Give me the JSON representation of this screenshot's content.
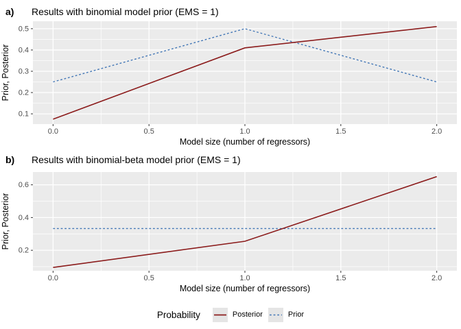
{
  "figure": {
    "background": "#FFFFFF",
    "panel_bg": "#EBEBEB",
    "grid_color": "#FFFFFF",
    "tick_mark_color": "#333333",
    "tick_label_color": "#4D4D4D",
    "axis_title_color": "#000000",
    "posterior_color": "#8B1B1B",
    "prior_color": "#4377B6",
    "legend_key_bg": "#E5E5E5"
  },
  "chart_data": [
    {
      "type": "line",
      "tag": "a)",
      "title": "Results with binomial model prior (EMS = 1)",
      "xlabel": "Model size (number of regressors)",
      "ylabel": "Prior, Posterior",
      "x": [
        0,
        1,
        2
      ],
      "series": [
        {
          "name": "Posterior",
          "values": [
            0.075,
            0.41,
            0.51
          ],
          "color": "#8B1B1B",
          "linetype": "solid"
        },
        {
          "name": "Prior",
          "values": [
            0.25,
            0.5,
            0.25
          ],
          "color": "#4377B6",
          "linetype": "dashed"
        }
      ],
      "xlim": [
        -0.105,
        2.105
      ],
      "ylim": [
        0.052,
        0.535
      ],
      "xticks": [
        0.0,
        0.5,
        1.0,
        1.5,
        2.0
      ],
      "xtick_labels": [
        "0.0",
        "0.5",
        "1.0",
        "1.5",
        "2.0"
      ],
      "yticks": [
        0.1,
        0.2,
        0.3,
        0.4,
        0.5
      ],
      "ytick_labels": [
        "0.1",
        "0.2",
        "0.3",
        "0.4",
        "0.5"
      ],
      "xminor": [
        0.25,
        0.75,
        1.25,
        1.75
      ],
      "yminor": [
        0.15,
        0.25,
        0.35,
        0.45
      ],
      "grid": "major+minor",
      "legend_position": "bottom"
    },
    {
      "type": "line",
      "tag": "b)",
      "title": "Results with binomial-beta model prior (EMS = 1)",
      "xlabel": "Model size (number of regressors)",
      "ylabel": "Prior, Posterior",
      "x": [
        0,
        1,
        2
      ],
      "series": [
        {
          "name": "Posterior",
          "values": [
            0.095,
            0.255,
            0.65
          ],
          "color": "#8B1B1B",
          "linetype": "solid"
        },
        {
          "name": "Prior",
          "values": [
            0.333,
            0.333,
            0.333
          ],
          "color": "#4377B6",
          "linetype": "dashed"
        }
      ],
      "xlim": [
        -0.105,
        2.105
      ],
      "ylim": [
        0.075,
        0.678
      ],
      "xticks": [
        0.0,
        0.5,
        1.0,
        1.5,
        2.0
      ],
      "xtick_labels": [
        "0.0",
        "0.5",
        "1.0",
        "1.5",
        "2.0"
      ],
      "yticks": [
        0.2,
        0.4,
        0.6
      ],
      "ytick_labels": [
        "0.2",
        "0.4",
        "0.6"
      ],
      "xminor": [
        0.25,
        0.75,
        1.25,
        1.75
      ],
      "yminor": [
        0.1,
        0.3,
        0.5
      ],
      "grid": "major+minor",
      "legend_position": "bottom"
    }
  ],
  "legend": {
    "title": "Probability",
    "entries": [
      {
        "label": "Posterior",
        "color": "#8B1B1B",
        "linetype": "solid"
      },
      {
        "label": "Prior",
        "color": "#4377B6",
        "linetype": "dashed"
      }
    ]
  }
}
